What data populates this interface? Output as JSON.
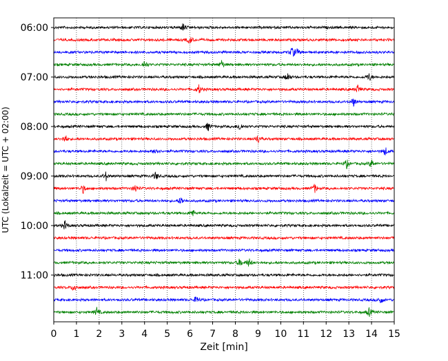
{
  "chart_data": {
    "type": "line",
    "chart_kind": "helicorder",
    "xlabel": "Zeit  [min]",
    "ylabel": "UTC (Lokalzeit = UTC + 02:00)",
    "xlim": [
      0,
      15
    ],
    "x_ticks": [
      "0",
      "1",
      "2",
      "3",
      "4",
      "5",
      "6",
      "7",
      "8",
      "9",
      "10",
      "11",
      "12",
      "13",
      "14",
      "15"
    ],
    "y_tick_labels": [
      "06:00",
      "07:00",
      "08:00",
      "09:00",
      "10:00",
      "11:00"
    ],
    "grid": "vertical-dotted",
    "trace_colors": [
      "#000000",
      "#ff0000",
      "#0000ff",
      "#008000"
    ],
    "traces": [
      {
        "start": "06:00",
        "color": "#000000",
        "events": [
          5.7
        ]
      },
      {
        "start": "06:15",
        "color": "#ff0000",
        "events": [
          6.0
        ]
      },
      {
        "start": "06:30",
        "color": "#0000ff",
        "events": [
          10.5,
          10.7
        ]
      },
      {
        "start": "06:45",
        "color": "#008000",
        "events": [
          4.0,
          7.4
        ]
      },
      {
        "start": "07:00",
        "color": "#000000",
        "events": [
          10.3,
          13.9
        ]
      },
      {
        "start": "07:15",
        "color": "#ff0000",
        "events": [
          6.4,
          13.4
        ]
      },
      {
        "start": "07:30",
        "color": "#0000ff",
        "events": [
          13.2
        ]
      },
      {
        "start": "07:45",
        "color": "#008000",
        "events": []
      },
      {
        "start": "08:00",
        "color": "#000000",
        "events": [
          6.8,
          8.2
        ]
      },
      {
        "start": "08:15",
        "color": "#ff0000",
        "events": [
          0.5,
          9.0
        ]
      },
      {
        "start": "08:30",
        "color": "#0000ff",
        "events": [
          4.5,
          14.6
        ]
      },
      {
        "start": "08:45",
        "color": "#008000",
        "events": [
          12.9,
          14.0
        ]
      },
      {
        "start": "09:00",
        "color": "#000000",
        "events": [
          2.3,
          4.5
        ]
      },
      {
        "start": "09:15",
        "color": "#ff0000",
        "events": [
          1.3,
          3.6,
          11.5
        ]
      },
      {
        "start": "09:30",
        "color": "#0000ff",
        "events": [
          5.6
        ]
      },
      {
        "start": "09:45",
        "color": "#008000",
        "events": [
          6.1
        ]
      },
      {
        "start": "10:00",
        "color": "#000000",
        "events": [
          0.5
        ]
      },
      {
        "start": "10:15",
        "color": "#ff0000",
        "events": []
      },
      {
        "start": "10:30",
        "color": "#0000ff",
        "events": []
      },
      {
        "start": "10:45",
        "color": "#008000",
        "events": [
          8.2,
          8.6
        ]
      },
      {
        "start": "11:00",
        "color": "#000000",
        "events": []
      },
      {
        "start": "11:15",
        "color": "#ff0000",
        "events": [
          0.9
        ]
      },
      {
        "start": "11:30",
        "color": "#0000ff",
        "events": [
          6.3,
          14.4
        ]
      },
      {
        "start": "11:45",
        "color": "#008000",
        "events": [
          1.9,
          13.9
        ]
      }
    ]
  }
}
